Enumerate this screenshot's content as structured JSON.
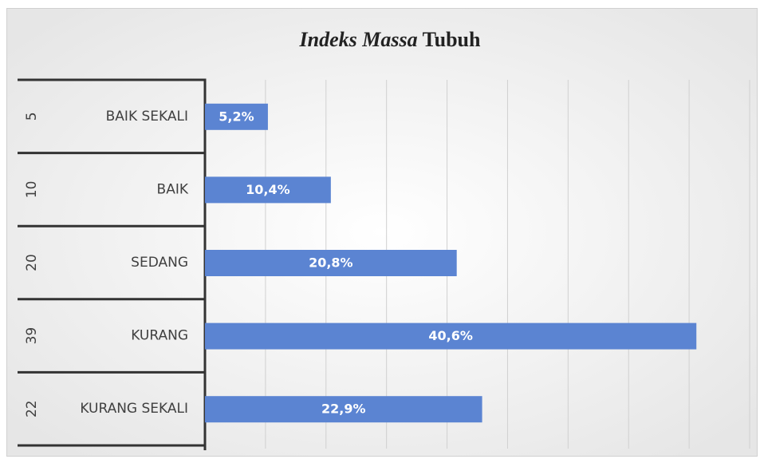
{
  "chart_data": {
    "type": "bar",
    "orientation": "horizontal",
    "title": [
      "Indeks Massa",
      "Tubuh"
    ],
    "group_labels": [
      "5",
      "10",
      "20",
      "39",
      "22"
    ],
    "categories": [
      "BAIK SEKALI",
      "BAIK",
      "SEDANG",
      "KURANG",
      "KURANG SEKALI"
    ],
    "values": [
      5.2,
      10.4,
      20.8,
      40.6,
      22.9
    ],
    "value_labels": [
      "5,2%",
      "10,4%",
      "20,8%",
      "40,6%",
      "22,9%"
    ],
    "color": "#5b84d2",
    "xlim": [
      0,
      45
    ],
    "xticks": [
      0,
      5,
      10,
      15,
      20,
      25,
      30,
      35,
      40,
      45
    ],
    "grid": true
  }
}
